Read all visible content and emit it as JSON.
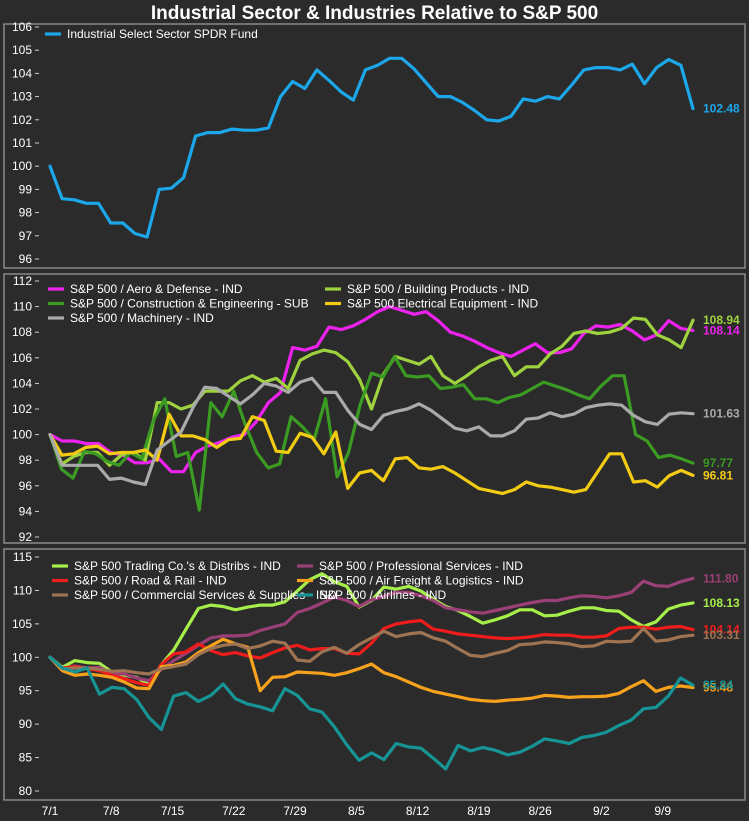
{
  "title": "Industrial Sector & Industries Relative to S&P 500",
  "x_labels": [
    "7/1",
    "7/8",
    "7/15",
    "7/22",
    "7/29",
    "8/5",
    "8/12",
    "8/19",
    "8/26",
    "9/2",
    "9/9"
  ],
  "chart_data": [
    {
      "type": "line",
      "ylim": [
        96,
        106
      ],
      "yticks": [
        96,
        97,
        98,
        99,
        100,
        101,
        102,
        103,
        104,
        105,
        106
      ],
      "series": [
        {
          "name": "Industrial Select Sector SPDR Fund",
          "color": "#1ca7ea",
          "end_label": "102.48",
          "values": [
            100,
            98.6,
            98.55,
            98.4,
            98.4,
            97.55,
            97.55,
            97.1,
            96.95,
            99.0,
            99.05,
            99.5,
            101.3,
            101.45,
            101.45,
            101.6,
            101.55,
            101.55,
            101.65,
            103.0,
            103.65,
            103.35,
            104.15,
            103.7,
            103.2,
            102.85,
            104.15,
            104.35,
            104.65,
            104.65,
            104.2,
            103.6,
            103.0,
            103.0,
            102.75,
            102.4,
            102.0,
            101.95,
            102.15,
            102.9,
            102.8,
            103.0,
            102.9,
            103.5,
            104.15,
            104.25,
            104.25,
            104.15,
            104.4,
            103.55,
            104.25,
            104.6,
            104.35,
            102.48
          ]
        }
      ]
    },
    {
      "type": "line",
      "ylim": [
        92,
        112
      ],
      "yticks": [
        92,
        94,
        96,
        98,
        100,
        102,
        104,
        106,
        108,
        110,
        112
      ],
      "series": [
        {
          "name": "S&P 500 / Aero & Defense - IND",
          "color": "#ee22ee",
          "end_label": "108.14",
          "values": [
            100,
            99.5,
            99.5,
            99.3,
            99.3,
            98.6,
            98.4,
            97.8,
            97.8,
            98.1,
            97.1,
            97.1,
            98.6,
            99.1,
            99.4,
            99.8,
            100.0,
            101.0,
            102.5,
            103.3,
            106.8,
            106.6,
            106.9,
            108.4,
            108.2,
            108.5,
            109.0,
            109.6,
            110.0,
            109.7,
            109.4,
            109.6,
            108.9,
            108.0,
            107.7,
            107.3,
            106.8,
            106.4,
            106.1,
            106.6,
            107.1,
            106.4,
            106.4,
            106.7,
            107.9,
            108.5,
            108.4,
            108.6,
            108.1,
            107.4,
            107.8,
            108.9,
            108.3,
            108.14
          ]
        },
        {
          "name": "S&P 500 / Building Products - IND",
          "color": "#9ed33f",
          "end_label": "108.94",
          "values": [
            100,
            97.7,
            98.3,
            98.6,
            98.6,
            97.6,
            98.4,
            98.6,
            98.0,
            102.5,
            102.5,
            102.0,
            102.3,
            103.4,
            103.4,
            103.4,
            104.2,
            104.6,
            104.1,
            104.4,
            103.6,
            105.8,
            106.3,
            106.6,
            106.4,
            105.7,
            104.3,
            102.0,
            104.7,
            106.1,
            105.8,
            105.5,
            106.1,
            104.6,
            104.0,
            104.6,
            105.3,
            105.8,
            106.1,
            104.6,
            105.3,
            105.3,
            106.3,
            106.9,
            107.9,
            108.1,
            107.9,
            108.0,
            108.3,
            109.1,
            109.0,
            107.8,
            107.4,
            106.8,
            108.94
          ]
        },
        {
          "name": "S&P 500 / Construction & Engineering - SUB",
          "color": "#3b9b22",
          "end_label": "97.77",
          "values": [
            100,
            97.3,
            96.6,
            98.7,
            98.5,
            97.9,
            97.6,
            98.6,
            98.1,
            101.1,
            102.8,
            98.3,
            98.6,
            94.1,
            102.5,
            101.4,
            103.4,
            100.8,
            98.6,
            97.4,
            97.7,
            101.4,
            100.6,
            99.6,
            102.8,
            96.7,
            98.6,
            102.3,
            104.8,
            104.5,
            106.1,
            104.6,
            104.5,
            104.6,
            103.6,
            103.7,
            103.9,
            102.8,
            102.8,
            102.5,
            102.9,
            103.1,
            103.6,
            104.1,
            103.8,
            103.5,
            103.1,
            102.8,
            103.8,
            104.6,
            104.6,
            100.0,
            99.5,
            98.2,
            98.4,
            98.1,
            97.77
          ]
        },
        {
          "name": "S&P 500 Electrical Equipment - IND",
          "color": "#f2cb14",
          "end_label": "96.81",
          "values": [
            100,
            98.4,
            98.5,
            99.0,
            99.1,
            98.5,
            98.6,
            98.6,
            98.8,
            98.0,
            101.6,
            99.9,
            99.9,
            99.6,
            99.0,
            99.6,
            99.7,
            101.4,
            101.1,
            98.7,
            98.6,
            100.1,
            99.8,
            98.5,
            100.2,
            95.8,
            97.0,
            97.2,
            96.4,
            98.1,
            98.2,
            97.4,
            97.3,
            97.5,
            97.0,
            96.4,
            95.8,
            95.6,
            95.4,
            95.7,
            96.3,
            96.0,
            95.9,
            95.7,
            95.5,
            95.7,
            97.1,
            98.5,
            98.5,
            96.3,
            96.4,
            95.9,
            96.8,
            97.2,
            96.81
          ]
        },
        {
          "name": "S&P 500 / Machinery - IND",
          "color": "#aaaaaa",
          "end_label": "101.63",
          "values": [
            100,
            97.6,
            97.6,
            97.6,
            97.6,
            96.5,
            96.6,
            96.3,
            96.1,
            98.8,
            99.5,
            100.2,
            102.1,
            103.7,
            103.6,
            103.0,
            102.4,
            103.1,
            104.0,
            103.8,
            103.3,
            104.1,
            104.4,
            103.3,
            103.3,
            101.9,
            100.8,
            100.4,
            101.5,
            101.8,
            102.0,
            102.4,
            101.9,
            101.2,
            100.5,
            100.3,
            100.6,
            99.9,
            99.9,
            100.3,
            101.2,
            101.3,
            101.7,
            101.4,
            101.6,
            102.1,
            102.3,
            102.4,
            102.3,
            101.5,
            101.0,
            100.8,
            101.6,
            101.7,
            101.63
          ]
        }
      ]
    },
    {
      "type": "line",
      "ylim": [
        80,
        115
      ],
      "yticks": [
        80,
        85,
        90,
        95,
        100,
        105,
        110,
        115
      ],
      "series": [
        {
          "name": "S&P 500 Trading Co.'s & Distribs - IND",
          "color": "#a6ee4a",
          "end_label": "108.13",
          "values": [
            100,
            98.5,
            99.5,
            99.2,
            99.1,
            97.8,
            97.3,
            97.0,
            95.9,
            98.9,
            101.1,
            104.2,
            107.3,
            107.8,
            107.6,
            107.1,
            107.5,
            107.8,
            107.8,
            108.3,
            109.9,
            111.6,
            112.5,
            111.3,
            110.6,
            107.5,
            108.5,
            110.5,
            110.2,
            110.6,
            109.9,
            108.7,
            107.6,
            107.0,
            106.1,
            105.1,
            105.6,
            106.2,
            107.1,
            107.1,
            106.2,
            106.3,
            106.9,
            107.4,
            107.4,
            107.0,
            106.9,
            105.6,
            104.6,
            105.3,
            107.2,
            107.8,
            108.13
          ]
        },
        {
          "name": "S&P 500 / Professional Services - IND",
          "color": "#9b3f77",
          "end_label": "111.80",
          "values": [
            100,
            98.3,
            98.7,
            98.4,
            98.5,
            97.6,
            97.5,
            96.9,
            96.5,
            98.2,
            99.5,
            100.6,
            101.8,
            102.9,
            103.2,
            103.2,
            103.3,
            104.0,
            104.5,
            105.0,
            106.7,
            107.3,
            108.1,
            109.0,
            108.5,
            107.6,
            108.6,
            109.1,
            109.7,
            109.7,
            109.2,
            108.5,
            107.4,
            107.1,
            106.8,
            106.6,
            107.0,
            107.4,
            107.8,
            108.2,
            108.5,
            108.5,
            108.9,
            109.2,
            109.1,
            108.9,
            109.2,
            109.7,
            111.4,
            110.7,
            110.6,
            111.3,
            111.8
          ]
        },
        {
          "name": "S&P 500 / Road & Rail - IND",
          "color": "#ef1c1c",
          "end_label": "104.14",
          "values": [
            100,
            98.4,
            98.6,
            98.3,
            98.0,
            97.3,
            96.8,
            96.2,
            95.8,
            98.9,
            100.5,
            100.8,
            102.0,
            101.0,
            100.4,
            100.7,
            100.2,
            99.9,
            100.7,
            101.4,
            101.8,
            101.1,
            101.3,
            101.3,
            100.6,
            100.5,
            102.1,
            104.3,
            105.0,
            105.3,
            105.5,
            104.2,
            103.9,
            103.5,
            103.3,
            103.1,
            102.9,
            102.8,
            102.9,
            103.1,
            103.4,
            103.3,
            103.3,
            103.0,
            103.0,
            103.2,
            104.3,
            104.5,
            104.5,
            104.2,
            104.5,
            104.6,
            104.14
          ]
        },
        {
          "name": "S&P 500 / Air Freight & Logistics - IND",
          "color": "#f7a21c",
          "end_label": "95.48",
          "values": [
            100,
            98.0,
            97.3,
            97.5,
            97.3,
            97.0,
            96.3,
            95.4,
            95.3,
            98.6,
            98.8,
            99.3,
            100.7,
            101.7,
            102.7,
            102.0,
            101.5,
            95.0,
            97.0,
            97.1,
            97.8,
            97.7,
            97.6,
            97.3,
            97.7,
            98.3,
            99.0,
            97.7,
            97.1,
            96.3,
            95.5,
            94.9,
            94.5,
            94.1,
            93.7,
            93.5,
            93.4,
            93.6,
            93.7,
            93.9,
            94.3,
            94.2,
            94.0,
            94.1,
            94.1,
            94.2,
            94.6,
            95.6,
            96.5,
            94.9,
            95.5,
            95.7,
            95.48
          ]
        },
        {
          "name": "S&P 500 / Commercial Services & Supplies - IND",
          "color": "#9e7453",
          "end_label": "103.31",
          "values": [
            100,
            98.3,
            98.4,
            98.4,
            98.2,
            97.9,
            98.0,
            97.7,
            97.5,
            98.3,
            98.6,
            99.0,
            100.4,
            101.3,
            101.8,
            102.0,
            101.3,
            101.7,
            102.4,
            102.1,
            99.6,
            99.4,
            100.8,
            101.5,
            100.6,
            101.9,
            102.9,
            103.9,
            103.1,
            103.5,
            103.7,
            102.9,
            102.4,
            101.3,
            100.3,
            100.1,
            100.6,
            101.0,
            101.9,
            102.0,
            102.3,
            102.2,
            102.0,
            101.6,
            101.7,
            102.4,
            102.3,
            102.4,
            104.3,
            102.4,
            102.6,
            103.1,
            103.31
          ]
        },
        {
          "name": "S&P 500 / Airlines - IND",
          "color": "#179596",
          "end_label": "95.84",
          "values": [
            100,
            98.4,
            97.8,
            98.4,
            94.5,
            95.5,
            95.3,
            93.7,
            91.0,
            89.2,
            94.2,
            94.7,
            93.4,
            94.3,
            96.0,
            93.8,
            93.0,
            92.6,
            92.0,
            95.3,
            94.3,
            92.3,
            91.8,
            89.6,
            86.9,
            84.6,
            85.7,
            84.7,
            87.1,
            86.6,
            86.4,
            84.9,
            83.3,
            86.8,
            86.0,
            86.5,
            86.1,
            85.4,
            85.8,
            86.7,
            87.8,
            87.5,
            87.1,
            88.0,
            88.3,
            88.8,
            89.8,
            90.6,
            92.3,
            92.5,
            94.2,
            96.9,
            95.84
          ]
        }
      ]
    }
  ]
}
